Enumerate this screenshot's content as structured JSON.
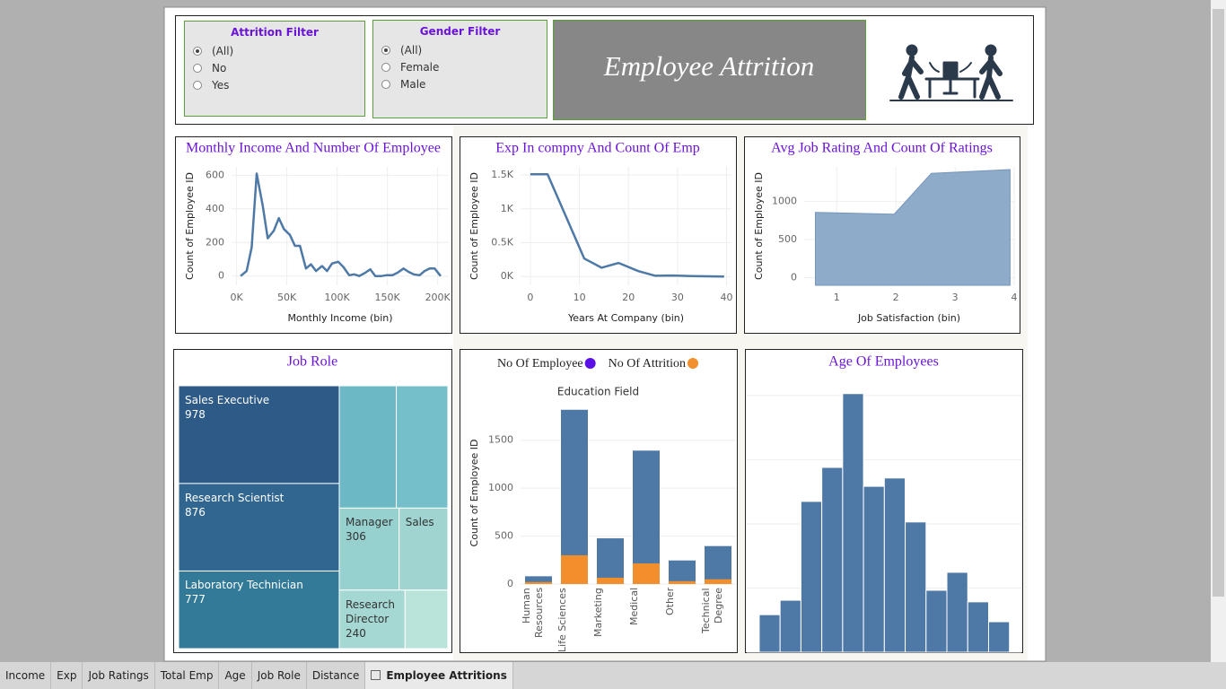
{
  "filters": [
    {
      "title": "Attrition Filter",
      "options": [
        "(All)",
        "No",
        "Yes"
      ],
      "selected": 0
    },
    {
      "title": "Gender Filter",
      "options": [
        "(All)",
        "Female",
        "Male"
      ],
      "selected": 0
    }
  ],
  "banner": {
    "title": "Employee Attrition"
  },
  "chart_data": [
    {
      "type": "line",
      "title": "Monthly Income And Number Of Employee",
      "x_label": "Monthly Income (bin)",
      "y_label": "Count of Employee ID",
      "x": [
        4000,
        10000,
        15000,
        20000,
        26000,
        31000,
        37000,
        42000,
        47000,
        53000,
        58000,
        63000,
        69000,
        74000,
        79000,
        85000,
        90000,
        95000,
        101000,
        106000,
        112000,
        117000,
        122000,
        128000,
        133000,
        138000,
        144000,
        149000,
        155000,
        160000,
        166000,
        171000,
        176000,
        182000,
        187000,
        192000,
        197000,
        203000
      ],
      "values": [
        0,
        30,
        170,
        610,
        420,
        225,
        270,
        345,
        280,
        245,
        180,
        180,
        45,
        70,
        30,
        60,
        30,
        75,
        85,
        55,
        5,
        10,
        0,
        20,
        40,
        0,
        0,
        5,
        5,
        20,
        45,
        25,
        10,
        5,
        30,
        45,
        45,
        0
      ],
      "color": "#4e79a7",
      "xlim": [
        -5000,
        211000
      ],
      "ylim": [
        -55,
        650
      ],
      "xticks": [
        {
          "value": 0,
          "label": "0K"
        },
        {
          "value": 50000,
          "label": "50K"
        },
        {
          "value": 100000,
          "label": "100K"
        },
        {
          "value": 150000,
          "label": "150K"
        },
        {
          "value": 200000,
          "label": "200K"
        }
      ],
      "yticks": [
        0,
        200,
        400,
        600
      ],
      "grid": true
    },
    {
      "type": "line",
      "title": "Exp In compny And Count Of Emp",
      "x_label": "Years At Company (bin)",
      "y_label": "Count of Employee ID",
      "x": [
        0,
        3.5,
        11,
        14.5,
        18,
        22,
        25.5,
        29,
        33,
        39.5
      ],
      "values": [
        1510,
        1510,
        265,
        130,
        200,
        80,
        10,
        15,
        5,
        0
      ],
      "color": "#4e79a7",
      "xlim": [
        -2,
        41
      ],
      "ylim": [
        -130,
        1620
      ],
      "xticks": [
        0,
        10,
        20,
        30,
        40
      ],
      "yticks": [
        {
          "value": 0,
          "label": "0K"
        },
        {
          "value": 500,
          "label": "0.5K"
        },
        {
          "value": 1000,
          "label": "1K"
        },
        {
          "value": 1500,
          "label": "1.5K"
        }
      ],
      "grid": true
    },
    {
      "type": "area",
      "title": "Avg Job Rating And Count Of Ratings",
      "x_label": "Job Satisfaction (bin)",
      "y_label": "Count of Employee ID",
      "x": [
        0.64,
        1.97,
        2.6,
        3.93
      ],
      "values": [
        855,
        830,
        1365,
        1415
      ],
      "color": "#8fabca",
      "xlim": [
        0.45,
        4
      ],
      "ylim": [
        -100,
        1450
      ],
      "xticks": [
        1,
        2,
        3,
        4
      ],
      "yticks": [
        0,
        500,
        1000
      ],
      "grid": true
    },
    {
      "type": "treemap",
      "title": "Job Role",
      "categories": [
        "Sales Executive",
        "Research Scientist",
        "Laboratory Technician",
        null,
        null,
        "Manager",
        "Sales",
        "Research Director",
        null
      ],
      "values": [
        978,
        876,
        777,
        435,
        393,
        306,
        249,
        240,
        156
      ],
      "value_labels": [
        "978",
        "876",
        "777",
        null,
        null,
        "306",
        null,
        "240",
        null
      ],
      "colors": [
        "#2d5a86",
        "#30668f",
        "#337a99",
        "#6cb8c5",
        "#74bfc9",
        "#96d0cf",
        "#9fd4d1",
        "#a6d8d3",
        "#bae4da"
      ]
    },
    {
      "type": "bar",
      "title": "Education Field",
      "y_label": "Count of Employee ID",
      "categories": [
        "Human Resources",
        "Life Sciences",
        "Marketing",
        "Medical",
        "Other",
        "Technical Degree"
      ],
      "series": [
        {
          "name": "No Of Employee",
          "color": "#4e79a7",
          "marker_color": "#5a10e6",
          "values": [
            81,
            1818,
            477,
            1392,
            246,
            396
          ]
        },
        {
          "name": "No Of Attrition",
          "color": "#f28e2b",
          "marker_color": "#f28e2b",
          "values": [
            21,
            300,
            66,
            215,
            30,
            50
          ]
        }
      ],
      "ylim": [
        0,
        1900
      ],
      "yticks": [
        0,
        500,
        1000,
        1500
      ],
      "grid": true
    },
    {
      "type": "histogram",
      "title": "Age Of Employees",
      "bins": [
        18,
        21.5,
        25,
        28.5,
        32,
        35.5,
        39,
        42.5,
        46,
        49.5,
        53,
        56.5,
        60
      ],
      "values": [
        117,
        162,
        470,
        576,
        806,
        517,
        543,
        406,
        193,
        249,
        157,
        95
      ],
      "color": "#4e79a7",
      "xlim": [
        15.9,
        62
      ],
      "ylim": [
        0,
        850
      ],
      "yticks": [
        0,
        200,
        400,
        600,
        800
      ],
      "grid": true,
      "tick_labels": false
    }
  ],
  "tabs": [
    "Income",
    "Exp",
    "Job Ratings",
    "Total Emp",
    "Age",
    "Job Role",
    "Distance",
    "Employee Attritions"
  ],
  "active_tab": 7
}
